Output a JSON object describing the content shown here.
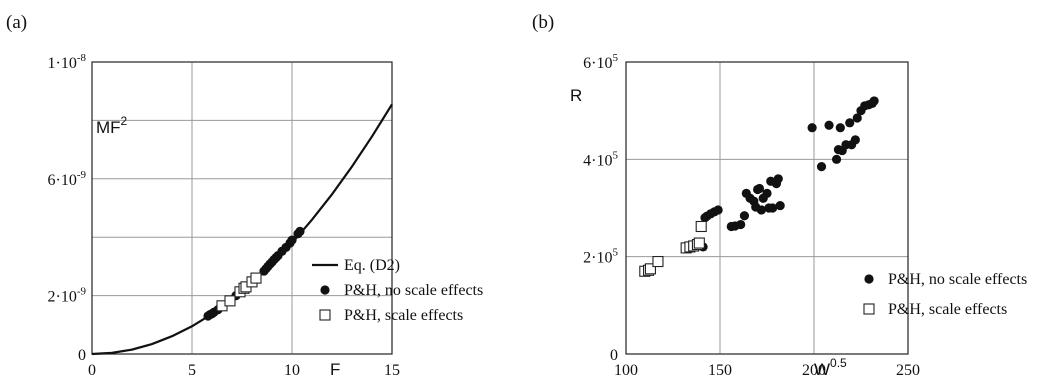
{
  "chart_data": [
    {
      "panel_label": "(a)",
      "type": "scatter",
      "xlabel": "F",
      "ylabel": "MF",
      "ylabel_sup": "2",
      "xlim": [
        0,
        15
      ],
      "ylim": [
        0,
        1e-08
      ],
      "xticks": [
        0,
        5,
        10,
        15
      ],
      "xtick_labels": [
        "0",
        "5",
        "10",
        "15"
      ],
      "yticks": [
        0,
        2e-09,
        6e-09,
        1e-08
      ],
      "ytick_labels": [
        {
          "mant": "0",
          "exp": ""
        },
        {
          "mant": "2·10",
          "exp": "-9"
        },
        {
          "mant": "6·10",
          "exp": "-9"
        },
        {
          "mant": "1·10",
          "exp": "-8"
        }
      ],
      "grid_x": [
        0,
        5,
        10,
        15
      ],
      "grid_y": [
        2e-09,
        4e-09,
        6e-09,
        8e-09
      ],
      "legend_position": "bottom-right",
      "series": [
        {
          "name": "Eq. (D2)",
          "kind": "line",
          "color": "#111111",
          "x": [
            0,
            1,
            2,
            3,
            4,
            5,
            6,
            7,
            8,
            9,
            10,
            11,
            12,
            13,
            14,
            15
          ],
          "y": [
            0,
            3.8e-11,
            1.5e-10,
            3.4e-10,
            6.1e-10,
            9.5e-10,
            1.37e-09,
            1.86e-09,
            2.43e-09,
            3.08e-09,
            3.8e-09,
            4.6e-09,
            5.47e-09,
            6.42e-09,
            7.45e-09,
            8.55e-09
          ]
        },
        {
          "name": "P&H, no scale effects",
          "kind": "filled-circle",
          "x": [
            5.8,
            5.9,
            6.0,
            6.1,
            6.3,
            7.2,
            8.6,
            8.7,
            8.8,
            8.9,
            9.0,
            9.1,
            9.2,
            9.3,
            9.5,
            9.7,
            9.9,
            10.0,
            10.3,
            10.4
          ],
          "y": [
            1.3e-09,
            1.35e-09,
            1.38e-09,
            1.43e-09,
            1.52e-09,
            2e-09,
            2.84e-09,
            2.92e-09,
            3e-09,
            3.08e-09,
            3.15e-09,
            3.23e-09,
            3.3e-09,
            3.37e-09,
            3.52e-09,
            3.65e-09,
            3.8e-09,
            3.9e-09,
            4.12e-09,
            4.2e-09
          ]
        },
        {
          "name": "P&H, scale effects",
          "kind": "open-square",
          "x": [
            6.5,
            6.9,
            7.4,
            7.6,
            7.7,
            8.0,
            8.2
          ],
          "y": [
            1.65e-09,
            1.82e-09,
            2.13e-09,
            2.25e-09,
            2.3e-09,
            2.47e-09,
            2.6e-09
          ]
        }
      ]
    },
    {
      "panel_label": "(b)",
      "type": "scatter",
      "xlabel": "W",
      "xlabel_sup": "0.5",
      "ylabel": "R",
      "xlim": [
        100,
        250
      ],
      "ylim": [
        0,
        600000
      ],
      "xticks": [
        100,
        150,
        200,
        250
      ],
      "xtick_labels": [
        "100",
        "150",
        "200",
        "250"
      ],
      "yticks": [
        0,
        200000,
        400000,
        600000
      ],
      "ytick_labels": [
        {
          "mant": "0",
          "exp": ""
        },
        {
          "mant": "2·10",
          "exp": "5"
        },
        {
          "mant": "4·10",
          "exp": "5"
        },
        {
          "mant": "6·10",
          "exp": "5"
        }
      ],
      "grid_x": [
        150,
        200
      ],
      "grid_y": [
        200000,
        400000
      ],
      "legend_position": "bottom-right",
      "series": [
        {
          "name": "P&H, no scale effects",
          "kind": "filled-circle",
          "x": [
            141,
            142,
            143,
            145,
            147,
            149,
            156,
            158,
            161,
            163,
            164,
            166,
            168,
            169,
            170,
            171,
            172,
            173,
            175,
            176,
            177,
            178,
            180,
            181,
            182,
            199,
            204,
            208,
            212,
            213,
            214,
            215,
            217,
            219,
            220,
            222,
            223,
            225,
            227,
            229,
            231,
            232
          ],
          "y": [
            220000,
            280000,
            283000,
            288000,
            292000,
            296000,
            262000,
            263000,
            266000,
            284000,
            330000,
            320000,
            314000,
            302000,
            338000,
            340000,
            296000,
            320000,
            330000,
            300000,
            355000,
            300000,
            350000,
            360000,
            305000,
            465000,
            385000,
            470000,
            400000,
            420000,
            465000,
            418000,
            430000,
            475000,
            430000,
            440000,
            485000,
            500000,
            510000,
            512000,
            515000,
            520000
          ]
        },
        {
          "name": "P&H, scale effects",
          "kind": "open-square",
          "x": [
            110,
            112,
            113,
            117,
            132,
            134,
            136,
            138,
            139,
            140
          ],
          "y": [
            170000,
            172000,
            175000,
            190000,
            218000,
            220000,
            222000,
            225000,
            228000,
            262000
          ]
        }
      ]
    }
  ]
}
